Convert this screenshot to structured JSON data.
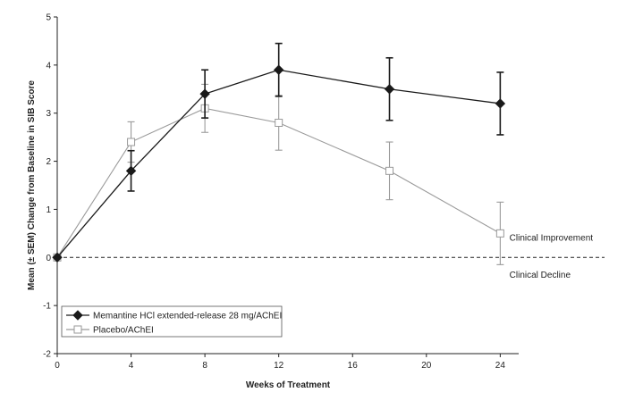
{
  "chart_data": {
    "type": "line",
    "title": "",
    "xlabel": "Weeks of Treatment",
    "ylabel": "Mean (± SEM) Change from Baseline in SIB Score",
    "xlim": [
      0,
      25
    ],
    "ylim": [
      -2,
      5
    ],
    "x_ticks": [
      0,
      4,
      8,
      12,
      16,
      20,
      24
    ],
    "y_ticks": [
      -2,
      -1,
      0,
      1,
      2,
      3,
      4,
      5
    ],
    "grid": false,
    "legend": "bottom-left",
    "reference_line": {
      "y": 0,
      "style": "dashed"
    },
    "annotations": [
      {
        "text": "Clinical Improvement",
        "x": 24.5,
        "y": 0.35
      },
      {
        "text": "Clinical Decline",
        "x": 24.5,
        "y": -0.42
      }
    ],
    "series": [
      {
        "name": "Memantine HCl extended-release 28 mg/AChEI",
        "color": "#1a1a1a",
        "marker": "diamond-filled",
        "x": [
          0,
          4,
          8,
          12,
          18,
          24
        ],
        "y": [
          0,
          1.8,
          3.4,
          3.9,
          3.5,
          3.2
        ],
        "sem": [
          0,
          0.42,
          0.5,
          0.55,
          0.65,
          0.65
        ]
      },
      {
        "name": "Placebo/AChEI",
        "color": "#9a9a9a",
        "marker": "square-open",
        "x": [
          0,
          4,
          8,
          12,
          18,
          24
        ],
        "y": [
          0,
          2.4,
          3.1,
          2.8,
          1.8,
          0.5
        ],
        "sem": [
          0,
          0.42,
          0.5,
          0.57,
          0.6,
          0.65
        ]
      }
    ]
  }
}
